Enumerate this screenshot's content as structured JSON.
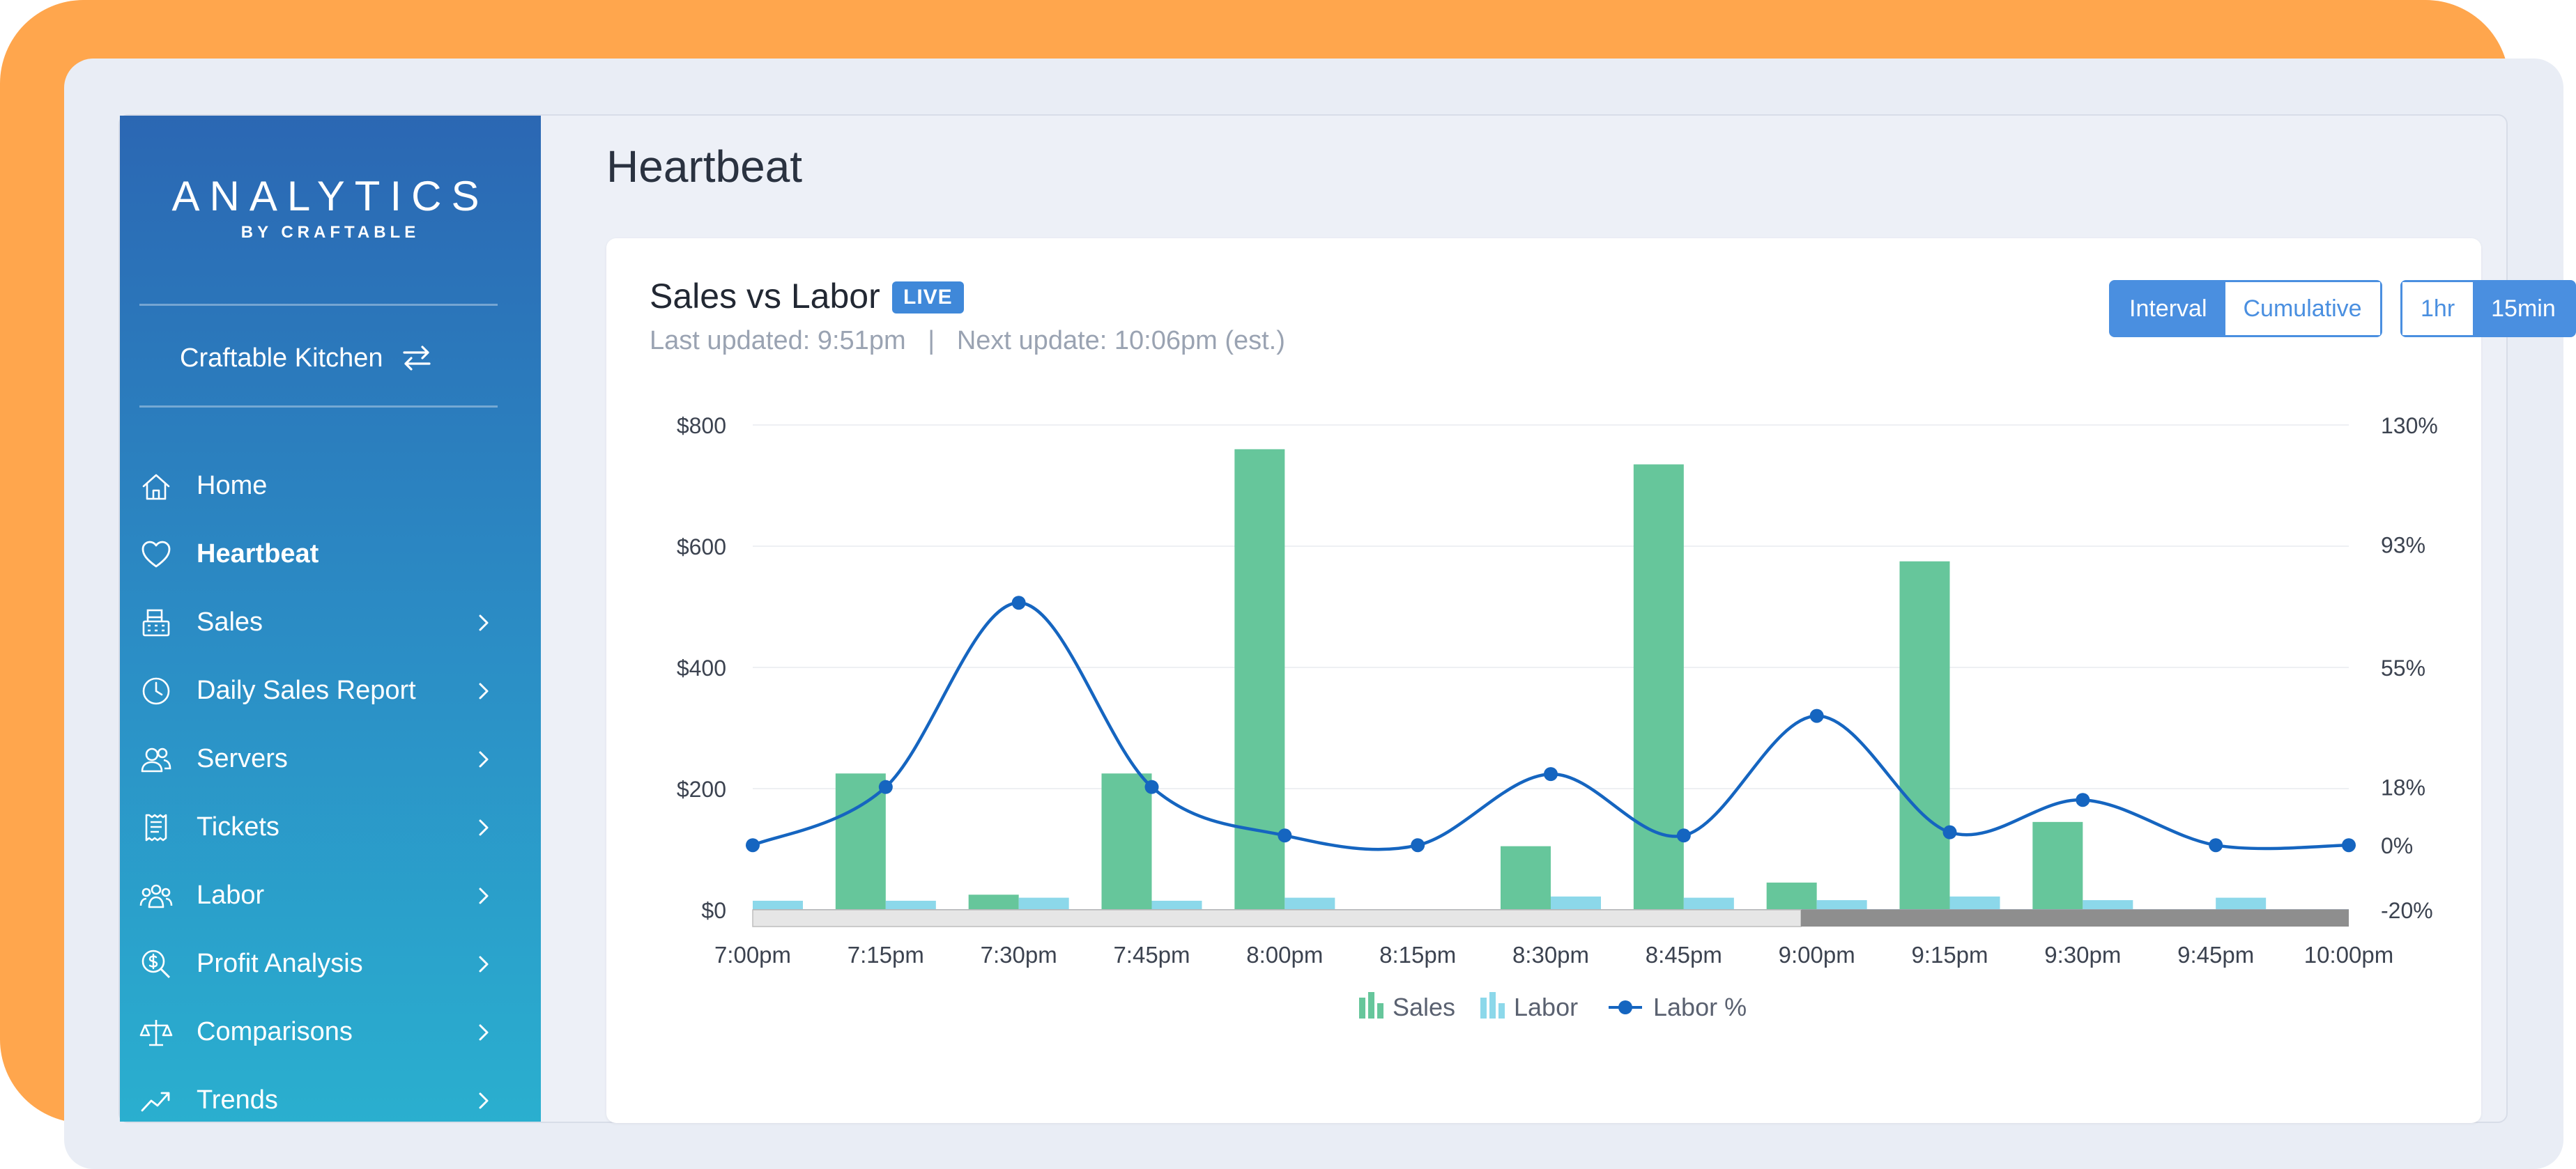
{
  "app": {
    "logo_main": "ANALYTICS",
    "logo_sub": "BY CRAFTABLE",
    "location": "Craftable Kitchen"
  },
  "nav": {
    "items": [
      {
        "label": "Home",
        "icon": "home-icon",
        "active": false,
        "has_chevron": false
      },
      {
        "label": "Heartbeat",
        "icon": "heart-icon",
        "active": true,
        "has_chevron": false
      },
      {
        "label": "Sales",
        "icon": "register-icon",
        "active": false,
        "has_chevron": true
      },
      {
        "label": "Daily Sales Report",
        "icon": "clock-icon",
        "active": false,
        "has_chevron": true
      },
      {
        "label": "Servers",
        "icon": "users-icon",
        "active": false,
        "has_chevron": true
      },
      {
        "label": "Tickets",
        "icon": "receipt-icon",
        "active": false,
        "has_chevron": true
      },
      {
        "label": "Labor",
        "icon": "team-icon",
        "active": false,
        "has_chevron": true
      },
      {
        "label": "Profit Analysis",
        "icon": "dollar-search-icon",
        "active": false,
        "has_chevron": true
      },
      {
        "label": "Comparisons",
        "icon": "scale-icon",
        "active": false,
        "has_chevron": true
      },
      {
        "label": "Trends",
        "icon": "trend-icon",
        "active": false,
        "has_chevron": true
      }
    ]
  },
  "page": {
    "title": "Heartbeat"
  },
  "card": {
    "title": "Sales vs Labor",
    "badge": "LIVE",
    "last_updated": "Last updated: 9:51pm",
    "separator": "|",
    "next_update": "Next update: 10:06pm (est.)"
  },
  "toggles": {
    "mode": {
      "options": [
        "Interval",
        "Cumulative"
      ],
      "selected": "Interval"
    },
    "range": {
      "options": [
        "1hr",
        "15min"
      ],
      "selected": "15min"
    }
  },
  "colors": {
    "sales": "#66C69B",
    "labor": "#8CD8EA",
    "labor_pct": "#1565C0",
    "accent": "#4A8FE0"
  },
  "chart_data": {
    "type": "bar",
    "title": "",
    "categories": [
      "7:00pm",
      "7:15pm",
      "7:30pm",
      "7:45pm",
      "8:00pm",
      "8:15pm",
      "8:30pm",
      "8:45pm",
      "9:00pm",
      "9:15pm",
      "9:30pm",
      "9:45pm",
      "10:00pm"
    ],
    "series": [
      {
        "name": "Sales",
        "type": "bar",
        "axis": "left",
        "values": [
          null,
          225,
          25,
          225,
          760,
          0,
          105,
          735,
          45,
          575,
          145,
          null,
          null
        ]
      },
      {
        "name": "Labor",
        "type": "bar",
        "axis": "left",
        "values": [
          15,
          15,
          20,
          15,
          20,
          null,
          22,
          20,
          16,
          22,
          16,
          20,
          null
        ]
      },
      {
        "name": "Labor %",
        "type": "line",
        "axis": "right",
        "values": [
          0,
          18,
          75,
          18,
          3,
          0,
          22,
          3,
          40,
          4,
          14,
          0,
          0
        ]
      }
    ],
    "y_left": {
      "ticks": [
        "$0",
        "$200",
        "$400",
        "$600",
        "$800"
      ],
      "range": [
        0,
        800
      ]
    },
    "y_right": {
      "ticks": [
        "-20%",
        "0%",
        "18%",
        "55%",
        "93%",
        "130%"
      ],
      "range": [
        -20,
        130
      ]
    },
    "legend": [
      "Sales",
      "Labor",
      "Labor %"
    ],
    "legend_position": "bottom",
    "grid": true
  }
}
